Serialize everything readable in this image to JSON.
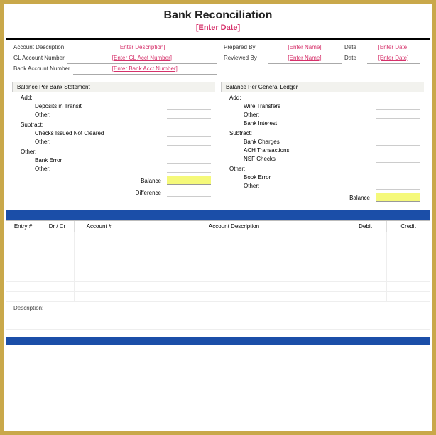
{
  "title": "Bank Reconciliation",
  "subtitle": "[Enter Date]",
  "info": {
    "acct_desc_lbl": "Account Description",
    "acct_desc_val": "[Enter Description]",
    "gl_lbl": "GL Account Number",
    "gl_val": "[Enter GL Acct Number]",
    "bank_lbl": "Bank Account Number",
    "bank_val": "[Enter Bank Acct Number]",
    "prep_lbl": "Prepared By",
    "prep_val": "[Enter Name]",
    "rev_lbl": "Reviewed By",
    "rev_val": "[Enter Name]",
    "date_lbl": "Date",
    "date_val": "[Enter Date]"
  },
  "left": {
    "header": "Balance Per Bank Statement",
    "add": "Add:",
    "add_items": [
      "Deposits in Transit",
      "Other:"
    ],
    "sub": "Subtract:",
    "sub_items": [
      "Checks Issued Not Cleared",
      "Other:"
    ],
    "other": "Other:",
    "other_items": [
      "Bank Error",
      "Other:"
    ],
    "balance": "Balance",
    "difference": "Difference"
  },
  "right": {
    "header": "Balance Per General Ledger",
    "add": "Add:",
    "add_items": [
      "Wire Transfers",
      "Other:",
      "Bank Interest"
    ],
    "sub": "Subtract:",
    "sub_items": [
      "Bank Charges",
      "ACH Transactions",
      "NSF Checks"
    ],
    "other": "Other:",
    "other_items": [
      "Book Error",
      "Other:"
    ],
    "balance": "Balance"
  },
  "table": {
    "entry": "Entry #",
    "drcr": "Dr / Cr",
    "acct": "Account #",
    "desc": "Account Description",
    "debit": "Debit",
    "credit": "Credit"
  },
  "desc_label": "Description:",
  "colors": {
    "accent": "#d6326b",
    "highlight": "#f5f97a",
    "band": "#1b4ea8",
    "frame": "#c9a84a"
  }
}
